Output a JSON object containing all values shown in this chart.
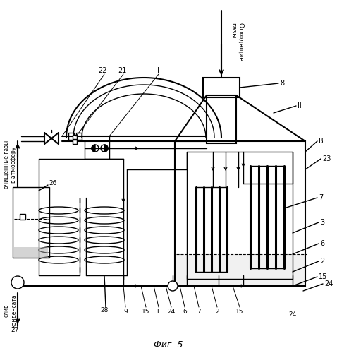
{
  "bg_color": "#ffffff",
  "line_color": "#000000",
  "fig_caption": "Фиг. 5",
  "label_fs": 7,
  "title_fs": 9,
  "otkhod_text": "Отходящие\nгазы",
  "ochistka_text": "очищенные газы\nв атмосферу",
  "sliv_text": "слив\nконденсата"
}
